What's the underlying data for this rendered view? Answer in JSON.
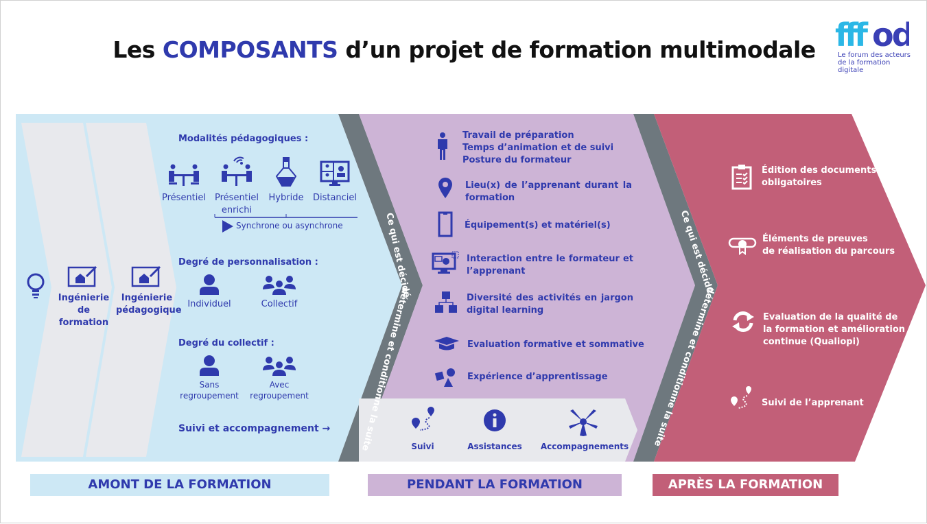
{
  "title": {
    "part1": "Les ",
    "highlight": "COMPOSANTS",
    "part2": " d’un projet de formation multimodale"
  },
  "logo": {
    "name": "fffod",
    "tagline_line1": "Le forum des acteurs",
    "tagline_line2": "de la formation digitale"
  },
  "colors": {
    "text_blue": "#2f3aad",
    "amont_bg": "#cde8f5",
    "pendant_bg": "#cdb4d6",
    "apres_bg": "#c25f78",
    "band": "#6e787e",
    "chevron_gray": "#e8e9ed"
  },
  "amont": {
    "chevrons": [
      {
        "label": "Ingénierie de formation",
        "icon": "blueprint-icon"
      },
      {
        "label": "Ingénierie pédagogique",
        "icon": "blueprint-icon"
      }
    ],
    "modalites_title": "Modalités pédagogiques :",
    "modalites": [
      {
        "label": "Présentiel",
        "icon": "meeting-table-icon"
      },
      {
        "label": "Présentiel enrichi",
        "icon": "meeting-wifi-icon"
      },
      {
        "label": "Hybride",
        "icon": "flask-icon"
      },
      {
        "label": "Distanciel",
        "icon": "video-conference-icon"
      }
    ],
    "sync_label": "Synchrone ou asynchrone",
    "perso_title": "Degré de personnalisation :",
    "perso": [
      {
        "label": "Individuel"
      },
      {
        "label": "Collectif"
      }
    ],
    "collectif_title": "Degré du collectif :",
    "collectif": [
      {
        "label_line1": "Sans",
        "label_line2": "regroupement"
      },
      {
        "label_line1": "Avec",
        "label_line2": "regroupement"
      }
    ],
    "suivi": "Suivi et accompagnement →"
  },
  "band": {
    "line1": "Ce qui est décidé",
    "line2": "détermine et conditionne la suite"
  },
  "pendant": {
    "items": [
      {
        "icon": "person-icon",
        "lines": [
          "Travail de préparation",
          "Temps d’animation et de suivi",
          "Posture du formateur"
        ]
      },
      {
        "icon": "location-pin-icon",
        "lines": [
          "Lieu(x) de l’apprenant durant la",
          "formation"
        ]
      },
      {
        "icon": "smartphone-icon",
        "lines": [
          "Équipement(s) et matériel(s)"
        ]
      },
      {
        "icon": "monitor-interaction-icon",
        "lines": [
          "Interaction entre le formateur et",
          "l’apprenant"
        ]
      },
      {
        "icon": "cubes-icon",
        "lines": [
          "Diversité des activités en jargon",
          "digital learning"
        ]
      },
      {
        "icon": "graduation-cap-icon",
        "lines": [
          "Evaluation formative et sommative"
        ]
      },
      {
        "icon": "shapes-icon",
        "lines": [
          "Expérience d’apprentissage"
        ]
      }
    ],
    "bottom": [
      {
        "label": "Suivi",
        "icon": "route-icon"
      },
      {
        "label": "Assistances",
        "icon": "info-icon"
      },
      {
        "label": "Accompagnements",
        "icon": "hands-together-icon"
      }
    ]
  },
  "apres": {
    "items": [
      {
        "icon": "clipboard-icon",
        "lines": [
          "Édition des documents",
          "obligatoires"
        ]
      },
      {
        "icon": "diploma-icon",
        "lines": [
          "Éléments de preuves",
          "de réalisation du parcours"
        ]
      },
      {
        "icon": "refresh-icon",
        "lines": [
          "Evaluation de la qualité de",
          "la formation et amélioration",
          "continue (Qualiopi)"
        ]
      },
      {
        "icon": "route-icon",
        "lines": [
          "Suivi de l’apprenant"
        ]
      }
    ]
  },
  "footer": {
    "amont": "AMONT DE LA FORMATION",
    "pendant": "PENDANT LA FORMATION",
    "apres": "APRÈS LA FORMATION"
  }
}
